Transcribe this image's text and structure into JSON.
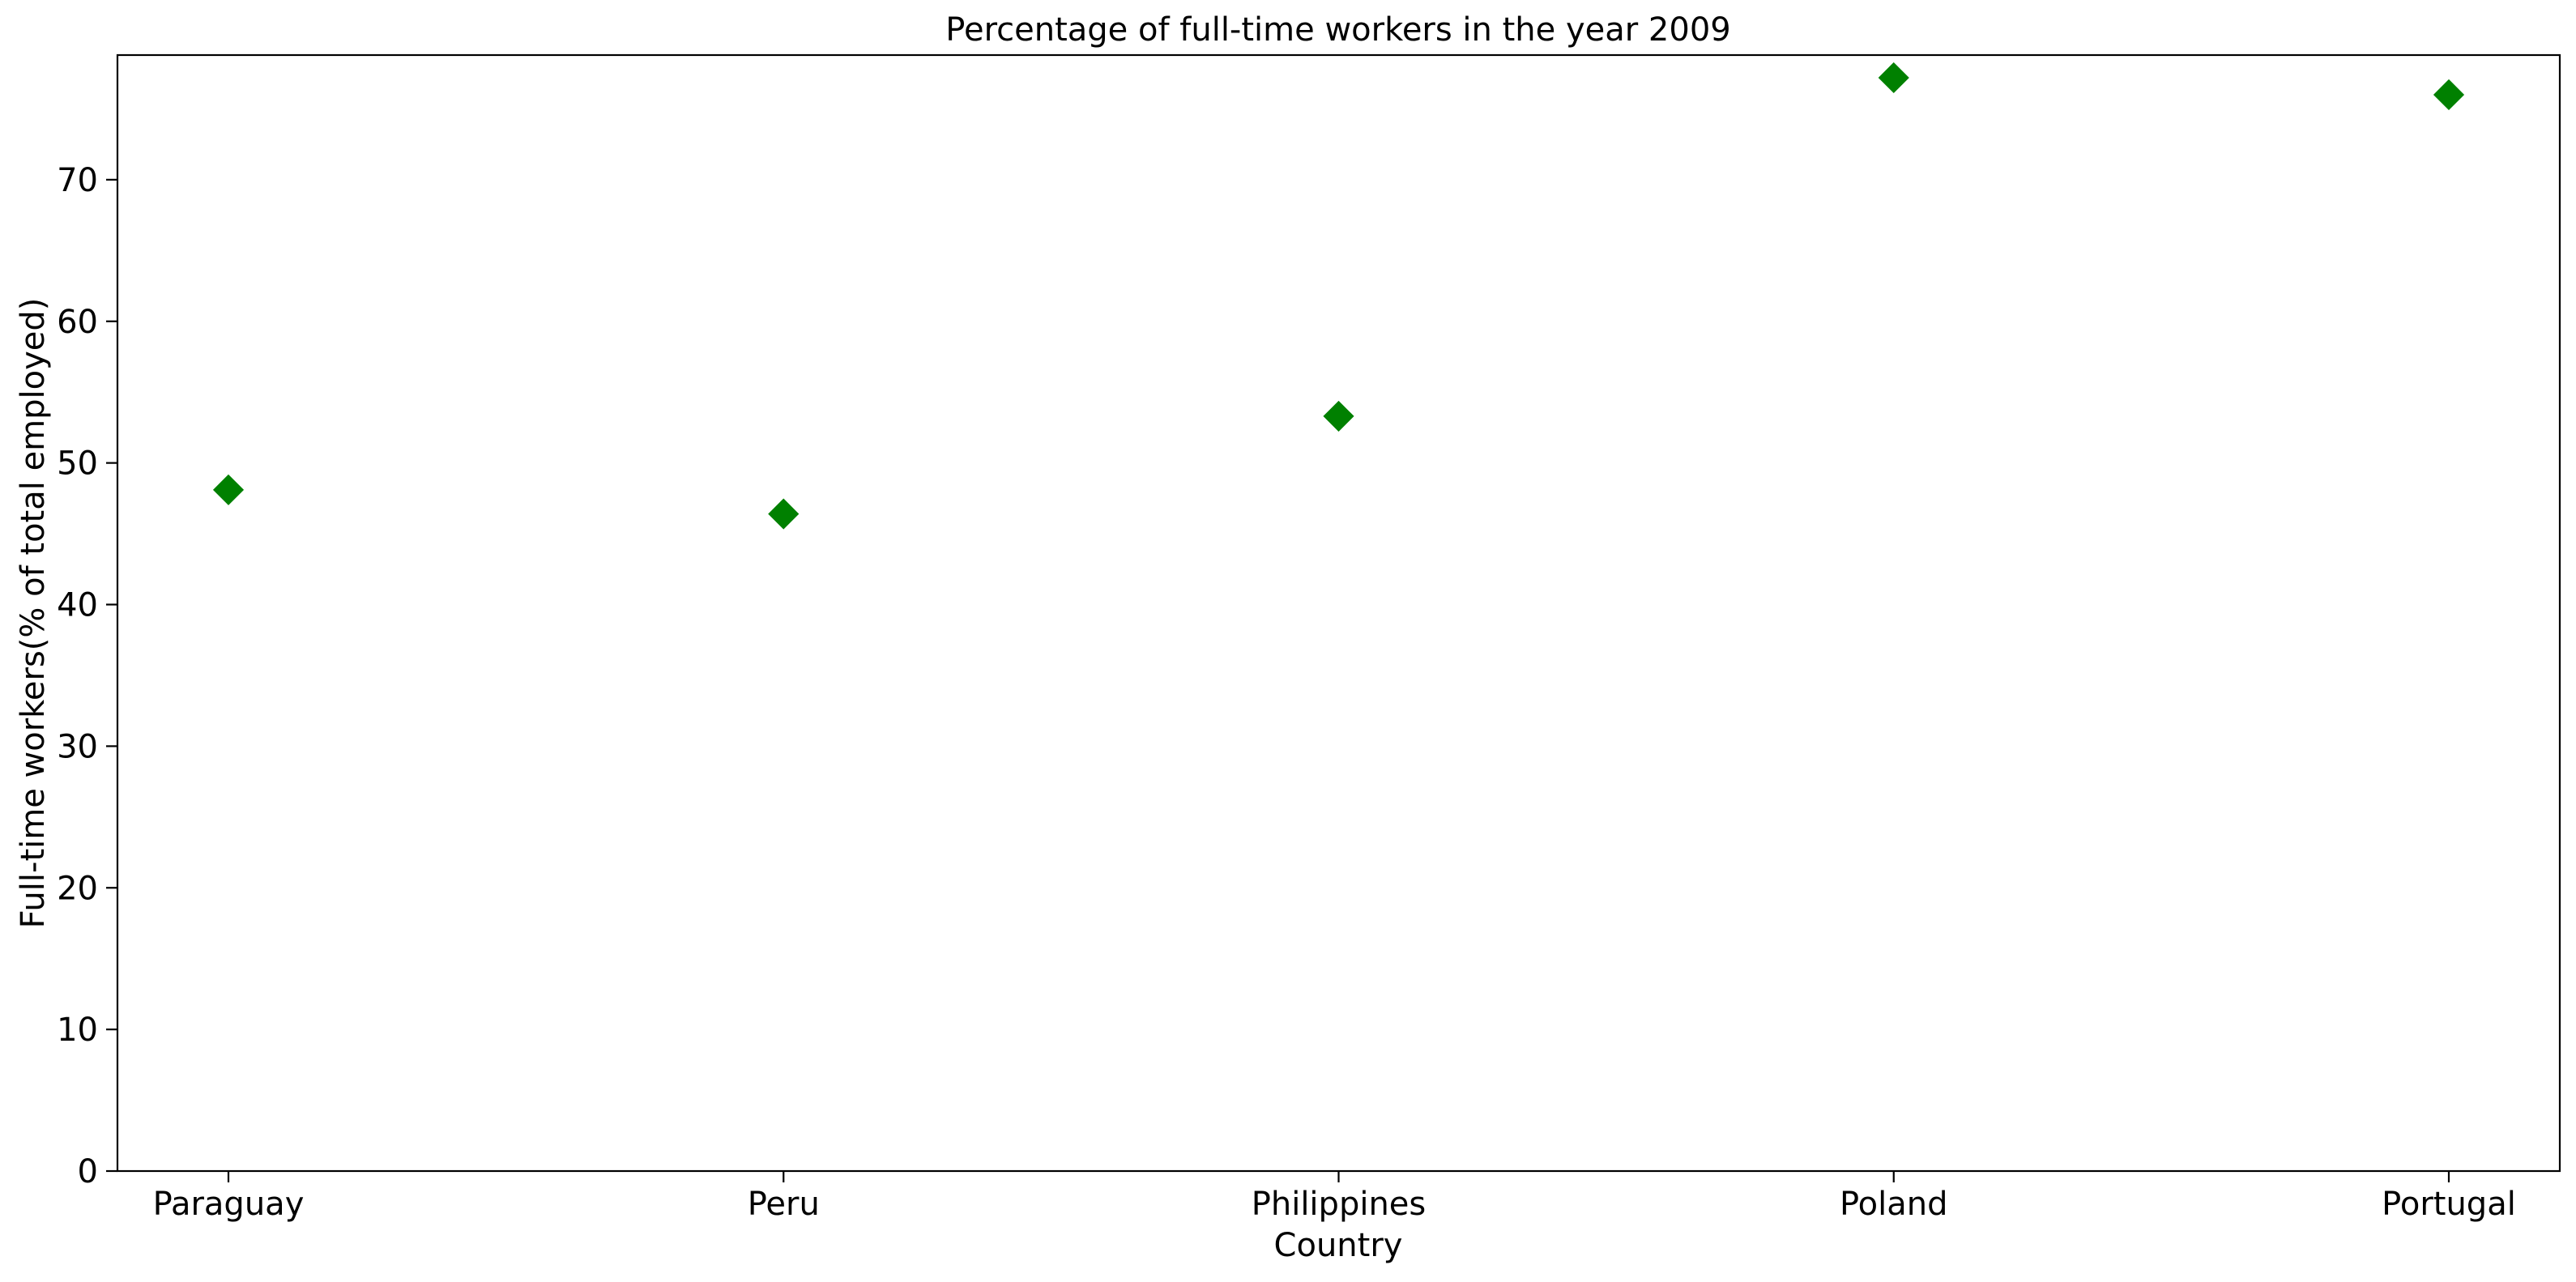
{
  "chart_data": {
    "type": "scatter",
    "title": "Percentage of full-time workers in the year 2009",
    "xlabel": "Country",
    "ylabel": "Full-time workers(% of total employed)",
    "categories": [
      "Paraguay",
      "Peru",
      "Philippines",
      "Poland",
      "Portugal"
    ],
    "series": [
      {
        "values": [
          48.1,
          46.4,
          53.3,
          77.2,
          76.0
        ],
        "color": "#008000",
        "marker": "diamond"
      }
    ],
    "ylim": [
      0,
      78.8
    ],
    "yticks": [
      0,
      10,
      20,
      30,
      40,
      50,
      60,
      70
    ],
    "grid": false,
    "legend": "none"
  }
}
